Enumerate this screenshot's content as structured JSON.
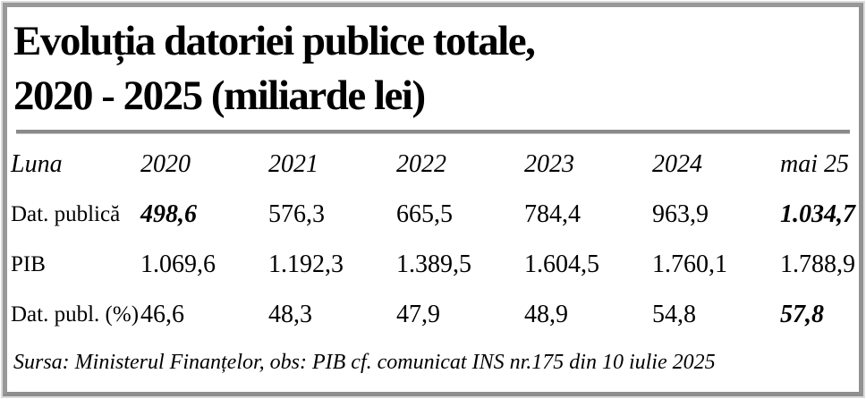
{
  "title": {
    "line1": "Evoluția datoriei publice totale,",
    "line2": "2020 - 2025 (miliarde lei)"
  },
  "table": {
    "header": [
      "Luna",
      "2020",
      "2021",
      "2022",
      "2023",
      "2024",
      "mai 25"
    ],
    "rows": [
      {
        "label": "Dat. publică",
        "values": [
          "498,6",
          "576,3",
          "665,5",
          "784,4",
          "963,9",
          "1.034,7"
        ],
        "emph": [
          true,
          false,
          false,
          false,
          false,
          true
        ]
      },
      {
        "label": "PIB",
        "values": [
          "1.069,6",
          "1.192,3",
          "1.389,5",
          "1.604,5",
          "1.760,1",
          "1.788,9"
        ],
        "emph": [
          false,
          false,
          false,
          false,
          false,
          false
        ]
      },
      {
        "label": "Dat. publ. (%)",
        "values": [
          "46,6",
          "48,3",
          "47,9",
          "48,9",
          "54,8",
          "57,8"
        ],
        "emph": [
          false,
          false,
          false,
          false,
          false,
          true
        ]
      }
    ],
    "source": "Sursa: Ministerul Finanțelor, obs: PIB cf. comunicat INS nr.175 din 10 iulie 2025"
  },
  "colors": {
    "frame_border": "#989898",
    "frame_outline": "#dcdcdc",
    "divider": "#8a8a8a",
    "text": "#000000",
    "background": "#ffffff"
  },
  "chart_data": {
    "type": "table",
    "title": "Evoluția datoriei publice totale, 2020 - 2025 (miliarde lei)",
    "unit": "miliarde lei",
    "columns": [
      "Luna",
      "2020",
      "2021",
      "2022",
      "2023",
      "2024",
      "mai 25"
    ],
    "rows": [
      {
        "label": "Dat. publică",
        "values": [
          498.6,
          576.3,
          665.5,
          784.4,
          963.9,
          1034.7
        ]
      },
      {
        "label": "PIB",
        "values": [
          1069.6,
          1192.3,
          1389.5,
          1604.5,
          1760.1,
          1788.9
        ]
      },
      {
        "label": "Dat. publ. (%)",
        "values": [
          46.6,
          48.3,
          47.9,
          48.9,
          54.8,
          57.8
        ]
      }
    ],
    "emphasized_cells": [
      {
        "row": "Dat. publică",
        "column": "2020",
        "value": 498.6
      },
      {
        "row": "Dat. publică",
        "column": "mai 25",
        "value": 1034.7
      },
      {
        "row": "Dat. publ. (%)",
        "column": "mai 25",
        "value": 57.8
      }
    ],
    "source_note": "Sursa: Ministerul Finanțelor, obs: PIB cf. comunicat INS nr.175 din 10 iulie 2025"
  }
}
